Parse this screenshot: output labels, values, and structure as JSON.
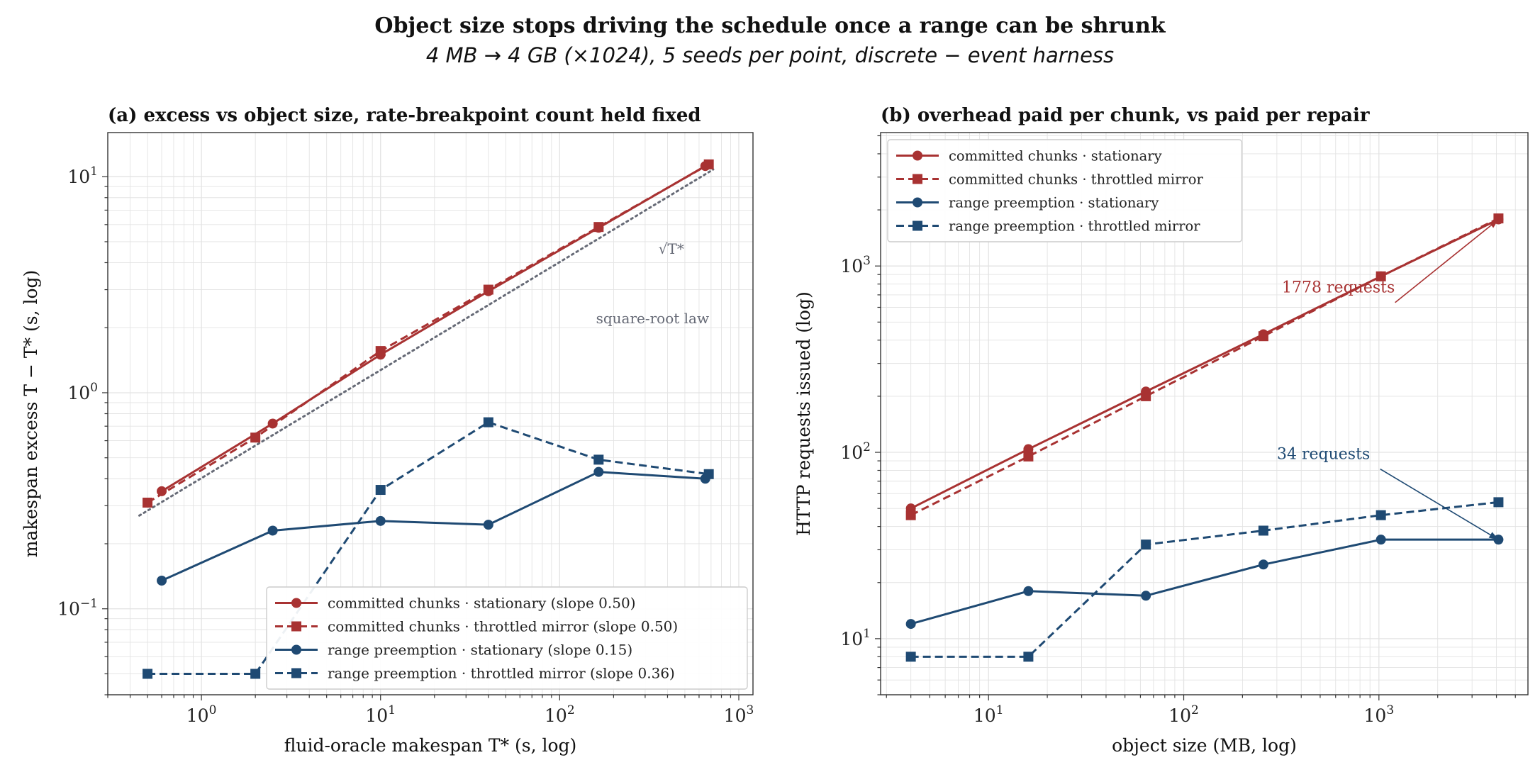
{
  "figure": {
    "title": "Object size stops driving the schedule once a range can be shrunk",
    "subtitle": "4 MB → 4 GB (×1024),  5 seeds per point,  discrete − event harness"
  },
  "colors": {
    "red": "#a83232",
    "blue": "#1f4a73",
    "ref": "#666a76",
    "grid": "#e3e3e3",
    "axis": "#333333"
  },
  "chart_data": [
    {
      "type": "line",
      "panel": "a",
      "title": "(a)  excess vs object size, rate-breakpoint count held fixed",
      "xlabel": "fluid-oracle makespan  T*  (s, log)",
      "ylabel": "makespan excess  T − T*  (s, log)",
      "xscale": "log",
      "yscale": "log",
      "xlim": [
        0.3,
        1200
      ],
      "ylim": [
        0.04,
        16
      ],
      "grid": true,
      "legend": "lower-right",
      "x_ticks": [
        {
          "value": 1,
          "base": "10",
          "exp": "0"
        },
        {
          "value": 10,
          "base": "10",
          "exp": "1"
        },
        {
          "value": 100,
          "base": "10",
          "exp": "2"
        },
        {
          "value": 1000,
          "base": "10",
          "exp": "3"
        }
      ],
      "y_ticks": [
        {
          "value": 0.1,
          "base": "10",
          "exp": "−1"
        },
        {
          "value": 1,
          "base": "10",
          "exp": "0"
        },
        {
          "value": 10,
          "base": "10",
          "exp": "1"
        }
      ],
      "series": [
        {
          "name": "committed chunks · stationary  (slope 0.50)",
          "color": "red",
          "dash": "solid",
          "marker": "circle",
          "x": [
            0.6,
            2.5,
            10,
            40,
            165,
            650
          ],
          "y": [
            0.35,
            0.72,
            1.5,
            2.95,
            5.8,
            11.2
          ]
        },
        {
          "name": "committed chunks · throttled mirror  (slope 0.50)",
          "color": "red",
          "dash": "dashed",
          "marker": "square",
          "x": [
            0.5,
            2.0,
            10,
            40,
            165,
            680
          ],
          "y": [
            0.31,
            0.62,
            1.56,
            3.0,
            5.85,
            11.4
          ]
        },
        {
          "name": "range preemption · stationary  (slope 0.15)",
          "color": "blue",
          "dash": "solid",
          "marker": "circle",
          "x": [
            0.6,
            2.5,
            10,
            40,
            165,
            650
          ],
          "y": [
            0.135,
            0.23,
            0.255,
            0.245,
            0.43,
            0.4
          ]
        },
        {
          "name": "range preemption · throttled mirror  (slope 0.36)",
          "color": "blue",
          "dash": "dashed",
          "marker": "square",
          "x": [
            0.5,
            2.0,
            10,
            40,
            165,
            680
          ],
          "y": [
            0.05,
            0.05,
            0.355,
            0.73,
            0.49,
            0.42
          ]
        }
      ],
      "reference": {
        "x": [
          0.45,
          720
        ],
        "y": [
          0.27,
          10.8
        ],
        "color": "ref",
        "dash": "dotted"
      },
      "annotations": [
        {
          "text": "√T*",
          "x": 420,
          "y": 4.4,
          "color": "ref"
        },
        {
          "text": "square-root law",
          "x": 330,
          "y": 2.1,
          "color": "ref"
        }
      ]
    },
    {
      "type": "line",
      "panel": "b",
      "title": "(b)  overhead paid per chunk, vs paid per repair",
      "xlabel": "object size (MB, log)",
      "ylabel": "HTTP requests issued (log)",
      "xscale": "log",
      "yscale": "log",
      "xlim": [
        2.8,
        5800
      ],
      "ylim": [
        5,
        5200
      ],
      "grid": true,
      "legend": "upper-left",
      "x_ticks": [
        {
          "value": 10,
          "base": "10",
          "exp": "1"
        },
        {
          "value": 100,
          "base": "10",
          "exp": "2"
        },
        {
          "value": 1000,
          "base": "10",
          "exp": "3"
        }
      ],
      "y_ticks": [
        {
          "value": 10,
          "base": "10",
          "exp": "1"
        },
        {
          "value": 100,
          "base": "10",
          "exp": "2"
        },
        {
          "value": 1000,
          "base": "10",
          "exp": "3"
        }
      ],
      "series": [
        {
          "name": "committed chunks · stationary",
          "color": "red",
          "dash": "solid",
          "marker": "circle",
          "x": [
            4,
            16,
            64,
            256,
            1024,
            4096
          ],
          "y": [
            50,
            104,
            212,
            430,
            880,
            1778
          ]
        },
        {
          "name": "committed chunks · throttled mirror",
          "color": "red",
          "dash": "dashed",
          "marker": "square",
          "x": [
            4,
            16,
            64,
            256,
            1024,
            4096
          ],
          "y": [
            46,
            95,
            200,
            420,
            880,
            1800
          ]
        },
        {
          "name": "range preemption · stationary",
          "color": "blue",
          "dash": "solid",
          "marker": "circle",
          "x": [
            4,
            16,
            64,
            256,
            1024,
            4096
          ],
          "y": [
            12,
            18,
            17,
            25,
            34,
            34
          ]
        },
        {
          "name": "range preemption · throttled mirror",
          "color": "blue",
          "dash": "dashed",
          "marker": "square",
          "x": [
            4,
            16,
            64,
            256,
            1024,
            4096
          ],
          "y": [
            8,
            8,
            32,
            38,
            46,
            54
          ]
        }
      ],
      "annotations": [
        {
          "text": "1778 requests",
          "x": 620,
          "y": 720,
          "color": "red",
          "arrow_to": [
            4096,
            1778
          ]
        },
        {
          "text": "34 requests",
          "x": 520,
          "y": 92,
          "color": "blue",
          "arrow_to": [
            4096,
            34
          ]
        }
      ]
    }
  ]
}
